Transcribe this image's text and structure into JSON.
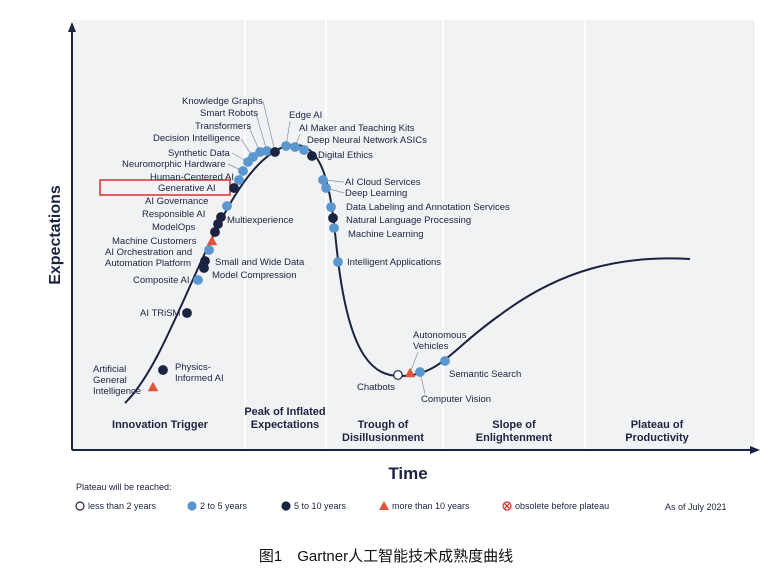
{
  "axes": {
    "y_label": "Expectations",
    "x_label": "Time"
  },
  "phases": [
    "Innovation Trigger",
    "Peak of Inflated Expectations",
    "Trough of Disillusionment",
    "Slope of Enlightenment",
    "Plateau of Productivity"
  ],
  "legend": {
    "title": "Plateau will be reached:",
    "as_of": "As of July 2021",
    "items": [
      {
        "label": "less than 2 years",
        "technologies": [
          "Chatbots"
        ]
      },
      {
        "label": "2 to 5 years",
        "technologies": [
          "Composite AI",
          "AI Orchestration and Automation Platform",
          "AI Governance",
          "Human-Centered AI",
          "Neuromorphic Hardware",
          "Synthetic Data",
          "Decision Intelligence",
          "Transformers",
          "Smart Robots",
          "Edge AI",
          "AI Maker and Teaching Kits",
          "Deep Neural Network ASICs",
          "AI Cloud Services",
          "Deep Learning",
          "Data Labeling and Annotation Services",
          "Machine Learning",
          "Intelligent Applications",
          "Computer Vision",
          "Semantic Search"
        ]
      },
      {
        "label": "5 to 10 years",
        "technologies": [
          "Physics-Informed AI",
          "AI TRiSM",
          "Model Compression",
          "Small and Wide Data",
          "ModelOps",
          "Responsible AI",
          "Multiexperience",
          "Generative AI",
          "Knowledge Graphs",
          "Digital Ethics",
          "Natural Language Processing"
        ]
      },
      {
        "label": "more than 10 years",
        "technologies": [
          "Artificial General Intelligence",
          "Machine Customers",
          "Autonomous Vehicles"
        ]
      },
      {
        "label": "obsolete before plateau",
        "technologies": []
      }
    ]
  },
  "caption": "图1　Gartner人工智能技术成熟度曲线"
}
